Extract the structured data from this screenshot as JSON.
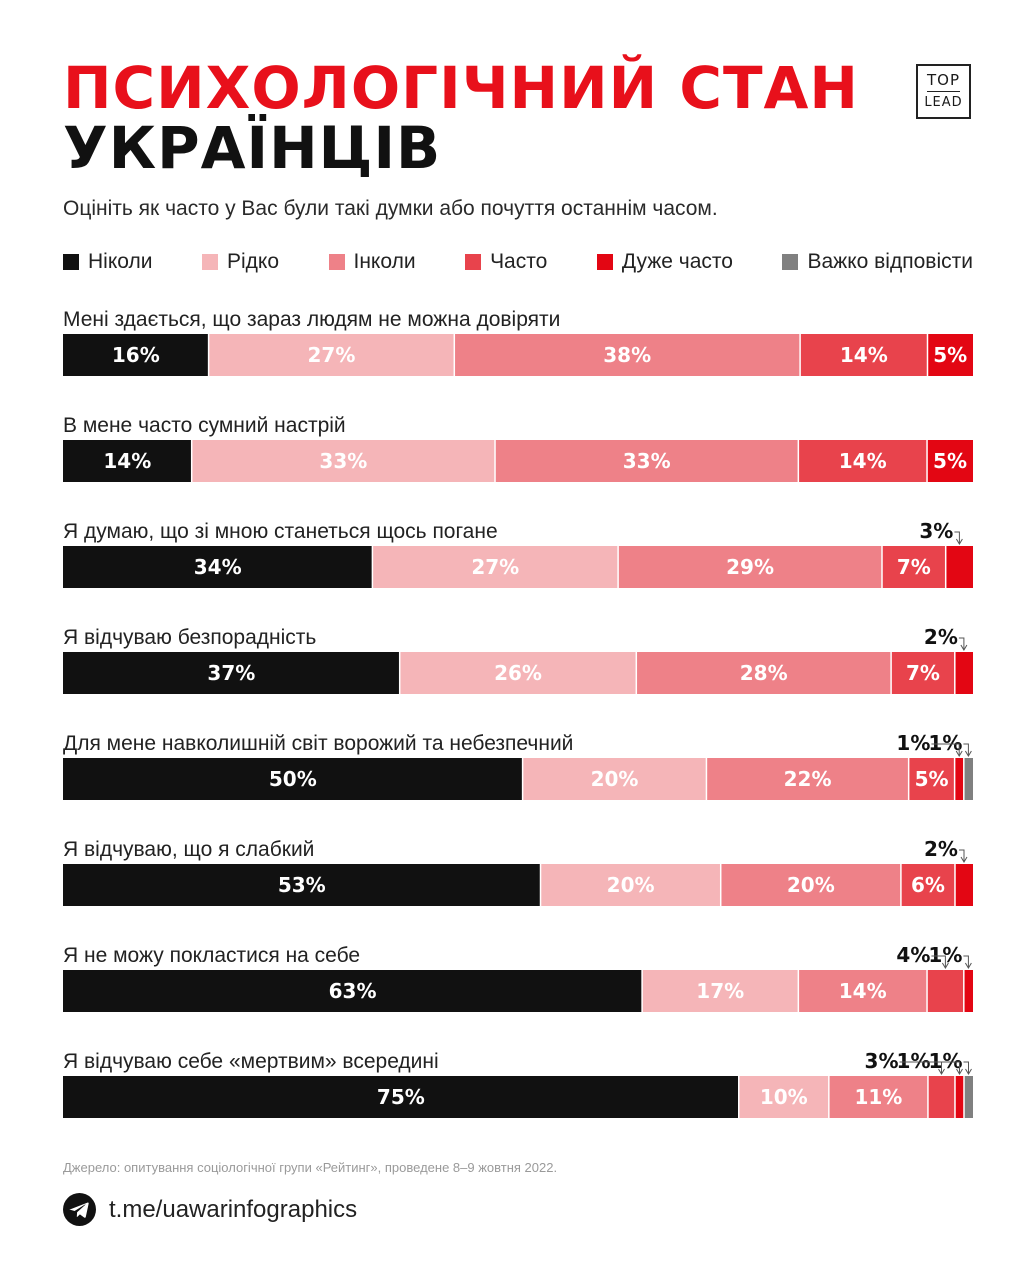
{
  "title": {
    "line1": "ПСИХОЛОГІЧНИЙ СТАН",
    "line2": "УКРАЇНЦІВ"
  },
  "logo": {
    "top": "TOP",
    "bottom": "LEAD"
  },
  "subtitle": "Оцініть як часто у Вас були такі думки або почуття останнім часом.",
  "colors": {
    "never": "#111111",
    "rarely": "#f5b5b8",
    "sometimes": "#ee8188",
    "often": "#e8434c",
    "very_often": "#e30613",
    "hard_to_say": "#808080"
  },
  "chart_data": {
    "type": "stacked-bar-horizontal",
    "title": "Психологічний стан українців",
    "question": "Оцініть як часто у Вас були такі думки або почуття останнім часом.",
    "unit": "%",
    "series": [
      {
        "key": "never",
        "name": "Ніколи"
      },
      {
        "key": "rarely",
        "name": "Рідко"
      },
      {
        "key": "sometimes",
        "name": "Інколи"
      },
      {
        "key": "often",
        "name": "Часто"
      },
      {
        "key": "very_often",
        "name": "Дуже часто"
      },
      {
        "key": "hard_to_say",
        "name": "Важко відповісти"
      }
    ],
    "rows": [
      {
        "label": "Мені здається, що зараз людям не можна довіряти",
        "values": [
          16,
          27,
          38,
          14,
          5,
          0
        ]
      },
      {
        "label": "В мене часто сумний настрій",
        "values": [
          14,
          33,
          33,
          14,
          5,
          0
        ]
      },
      {
        "label": "Я думаю, що зі мною станеться щось погане",
        "values": [
          34,
          27,
          29,
          7,
          3,
          0
        ]
      },
      {
        "label": "Я відчуваю безпорадність",
        "values": [
          37,
          26,
          28,
          7,
          2,
          0
        ]
      },
      {
        "label": "Для мене навколишній світ ворожий та небезпечний",
        "values": [
          50,
          20,
          22,
          5,
          1,
          1
        ]
      },
      {
        "label": "Я відчуваю, що я слабкий",
        "values": [
          53,
          20,
          20,
          6,
          2,
          0
        ]
      },
      {
        "label": "Я не можу покластися на себе",
        "values": [
          63,
          17,
          14,
          4,
          1,
          0
        ]
      },
      {
        "label": "Я відчуваю себе «мертвим» всередині",
        "values": [
          75,
          10,
          11,
          3,
          1,
          1
        ]
      }
    ]
  },
  "source": "Джерело: опитування соціологічної групи «Рейтинг», проведене 8–9 жовтня 2022.",
  "footer": {
    "link": "t.me/uawarinfographics",
    "icon": "telegram-icon"
  }
}
